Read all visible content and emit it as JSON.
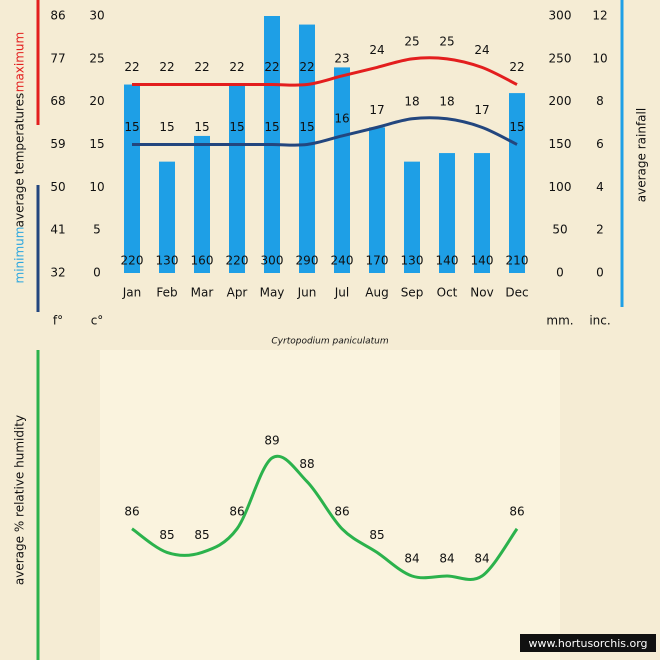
{
  "chart_data": [
    {
      "type": "combo",
      "subtitle": "Cyrtopodium paniculatum",
      "ylabel": "average  temperatures",
      "y2label": "average rainfall",
      "units": {
        "f": "f°",
        "c": "c°",
        "mm": "mm.",
        "in": "inc."
      },
      "categories": [
        "Jan",
        "Feb",
        "Mar",
        "Apr",
        "May",
        "Jun",
        "Jul",
        "Aug",
        "Sep",
        "Oct",
        "Nov",
        "Dec"
      ],
      "ylim": [
        0,
        30
      ],
      "yticks": [
        0,
        5,
        10,
        15,
        20,
        25,
        30
      ],
      "ylim_f": [
        32,
        86
      ],
      "yticks_f": [
        32,
        41,
        50,
        59,
        68,
        77,
        86
      ],
      "y2lim": [
        0,
        300
      ],
      "y2ticks": [
        0,
        50,
        100,
        150,
        200,
        250,
        300
      ],
      "y2lim_in": [
        0,
        12
      ],
      "y2ticks_in": [
        0,
        2,
        4,
        6,
        8,
        10,
        12
      ],
      "series": [
        {
          "type": "bar",
          "axis": "y2",
          "color": "#1e9fe6",
          "values": [
            220,
            130,
            160,
            220,
            300,
            290,
            240,
            170,
            130,
            140,
            140,
            210
          ]
        },
        {
          "type": "line",
          "name": "maximum",
          "color": "#e31e1e",
          "values": [
            22,
            22,
            22,
            22,
            22,
            22,
            23,
            24,
            25,
            25,
            24,
            22
          ]
        },
        {
          "type": "line",
          "name": "minimum",
          "color": "#23467e",
          "values": [
            15,
            15,
            15,
            15,
            15,
            15,
            16,
            17,
            18,
            18,
            17,
            15
          ]
        }
      ]
    },
    {
      "type": "line",
      "ylabel": "average %  relative humidity",
      "color": "#2bb24c",
      "categories": [
        null,
        null,
        null,
        null,
        null,
        null,
        null,
        null,
        null,
        null,
        null,
        null
      ],
      "values": [
        86,
        85,
        85,
        86,
        89,
        88,
        86,
        85,
        84,
        84,
        84,
        86
      ],
      "footer": "www.hortusorchis.org"
    }
  ]
}
